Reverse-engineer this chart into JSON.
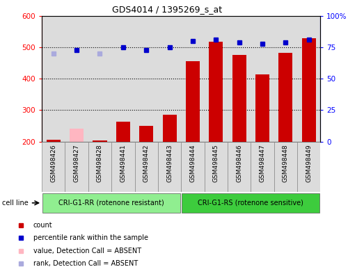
{
  "title": "GDS4014 / 1395269_s_at",
  "samples": [
    "GSM498426",
    "GSM498427",
    "GSM498428",
    "GSM498441",
    "GSM498442",
    "GSM498443",
    "GSM498444",
    "GSM498445",
    "GSM498446",
    "GSM498447",
    "GSM498448",
    "GSM498449"
  ],
  "count_values": [
    205,
    240,
    204,
    263,
    249,
    286,
    456,
    519,
    476,
    414,
    482,
    530
  ],
  "count_absent": [
    false,
    true,
    false,
    false,
    false,
    false,
    false,
    false,
    false,
    false,
    false,
    false
  ],
  "rank_values": [
    70,
    73,
    70,
    75,
    73,
    75,
    80,
    81,
    79,
    78,
    79,
    81
  ],
  "rank_absent": [
    true,
    false,
    true,
    false,
    false,
    false,
    false,
    false,
    false,
    false,
    false,
    false
  ],
  "group1_count": 6,
  "group2_count": 6,
  "group1_label": "CRI-G1-RR (rotenone resistant)",
  "group2_label": "CRI-G1-RS (rotenone sensitive)",
  "group_row_label": "cell line",
  "group1_color": "#90EE90",
  "group2_color": "#3DCC3D",
  "bar_color_present": "#CC0000",
  "bar_color_absent": "#FFB6C1",
  "rank_color_present": "#0000CC",
  "rank_color_absent": "#AAAADD",
  "ylim_left": [
    200,
    600
  ],
  "ylim_right": [
    0,
    100
  ],
  "yticks_left": [
    200,
    300,
    400,
    500,
    600
  ],
  "yticks_right": [
    0,
    25,
    50,
    75,
    100
  ],
  "yticklabels_right": [
    "0",
    "25",
    "50",
    "75",
    "100%"
  ],
  "bg_color": "#DCDCDC",
  "legend_items": [
    {
      "color": "#CC0000",
      "label": "count"
    },
    {
      "color": "#0000CC",
      "label": "percentile rank within the sample"
    },
    {
      "color": "#FFB6C1",
      "label": "value, Detection Call = ABSENT"
    },
    {
      "color": "#AAAADD",
      "label": "rank, Detection Call = ABSENT"
    }
  ]
}
